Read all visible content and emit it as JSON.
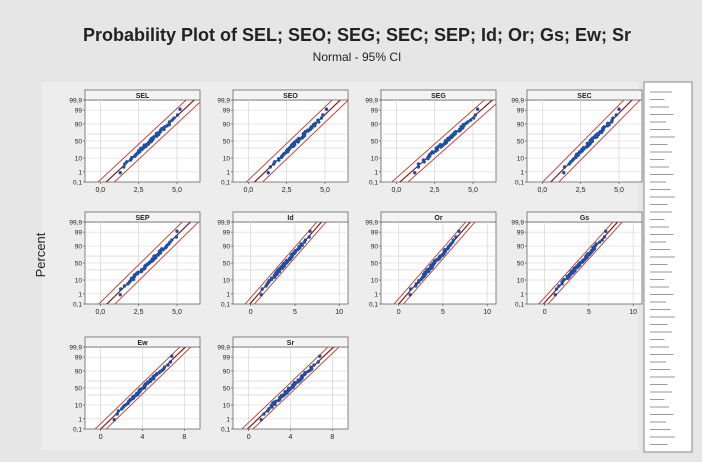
{
  "figure": {
    "title": "Probability Plot of SEL; SEO; SEG; SEC; SEP; Id; Or; Gs; Ew; Sr",
    "subtitle": "Normal - 95% CI",
    "ylabel": "Percent"
  },
  "colors": {
    "outer_bg": "#e6e6e6",
    "panel_bg": "#ffffff",
    "points": "#1f4fa3",
    "fit_line": "#7a1f1f",
    "ci_band": "#c0392b",
    "grid": "#cfcfcf",
    "strip": "#f4f4f4"
  },
  "chart_data": [
    {
      "type": "scatter",
      "title": "SEL",
      "xticks": [
        "0,0",
        "2,5",
        "5,0"
      ],
      "xlim": [
        -1,
        6.5
      ],
      "yticks": [
        "0,1",
        "1",
        "10",
        "50",
        "90",
        "99",
        "99,9"
      ],
      "scale": "normal-probability",
      "points": {
        "min": 1.3,
        "max": 5.2
      },
      "grid": true
    },
    {
      "type": "scatter",
      "title": "SEO",
      "xticks": [
        "0,0",
        "2,5",
        "5,0"
      ],
      "xlim": [
        -1,
        6.5
      ],
      "yticks": [
        "0,1",
        "1",
        "10",
        "50",
        "90",
        "99",
        "99,9"
      ],
      "scale": "normal-probability",
      "points": {
        "min": 1.3,
        "max": 5.1
      },
      "grid": true
    },
    {
      "type": "scatter",
      "title": "SEG",
      "xticks": [
        "0,0",
        "2,5",
        "5,0"
      ],
      "xlim": [
        -1,
        6.5
      ],
      "yticks": [
        "0,1",
        "1",
        "10",
        "50",
        "90",
        "99",
        "99,9"
      ],
      "scale": "normal-probability",
      "points": {
        "min": 1.2,
        "max": 5.3
      },
      "grid": true
    },
    {
      "type": "scatter",
      "title": "SEC",
      "xticks": [
        "0,0",
        "2,5",
        "5,0"
      ],
      "xlim": [
        -1,
        6.5
      ],
      "yticks": [
        "0,1",
        "1",
        "10",
        "50",
        "90",
        "99",
        "99,9"
      ],
      "scale": "normal-probability",
      "points": {
        "min": 1.4,
        "max": 5.0
      },
      "grid": true
    },
    {
      "type": "scatter",
      "title": "SEP",
      "xticks": [
        "0,0",
        "2,5",
        "5,0"
      ],
      "xlim": [
        -1,
        6.5
      ],
      "yticks": [
        "0,1",
        "1",
        "10",
        "50",
        "90",
        "99",
        "99,9"
      ],
      "scale": "normal-probability",
      "points": {
        "min": 1.3,
        "max": 5.0
      },
      "grid": true
    },
    {
      "type": "scatter",
      "title": "Id",
      "xticks": [
        "0",
        "5",
        "10"
      ],
      "xlim": [
        -2,
        11
      ],
      "yticks": [
        "0,1",
        "1",
        "10",
        "50",
        "90",
        "99",
        "99,9"
      ],
      "scale": "normal-probability",
      "points": {
        "min": 1.2,
        "max": 6.7
      },
      "grid": true
    },
    {
      "type": "scatter",
      "title": "Or",
      "xticks": [
        "0",
        "5",
        "10"
      ],
      "xlim": [
        -2,
        11
      ],
      "yticks": [
        "0,1",
        "1",
        "10",
        "50",
        "90",
        "99",
        "99,9"
      ],
      "scale": "normal-probability",
      "points": {
        "min": 1.3,
        "max": 6.8
      },
      "grid": true
    },
    {
      "type": "scatter",
      "title": "Gs",
      "xticks": [
        "0",
        "5",
        "10"
      ],
      "xlim": [
        -2,
        11
      ],
      "yticks": [
        "0,1",
        "1",
        "10",
        "50",
        "90",
        "99",
        "99,9"
      ],
      "scale": "normal-probability",
      "points": {
        "min": 1.2,
        "max": 6.9
      },
      "grid": true
    },
    {
      "type": "scatter",
      "title": "Ew",
      "xticks": [
        "0",
        "4",
        "8"
      ],
      "xlim": [
        -1.5,
        9.5
      ],
      "yticks": [
        "0,1",
        "1",
        "10",
        "50",
        "90",
        "99",
        "99,9"
      ],
      "scale": "normal-probability",
      "points": {
        "min": 1.3,
        "max": 6.8
      },
      "grid": true
    },
    {
      "type": "scatter",
      "title": "Sr",
      "xticks": [
        "0",
        "4",
        "8"
      ],
      "xlim": [
        -1.5,
        9.5
      ],
      "yticks": [
        "0,1",
        "1",
        "10",
        "50",
        "90",
        "99",
        "99,9"
      ],
      "scale": "normal-probability",
      "points": {
        "min": 1.2,
        "max": 6.8
      },
      "grid": true
    }
  ]
}
